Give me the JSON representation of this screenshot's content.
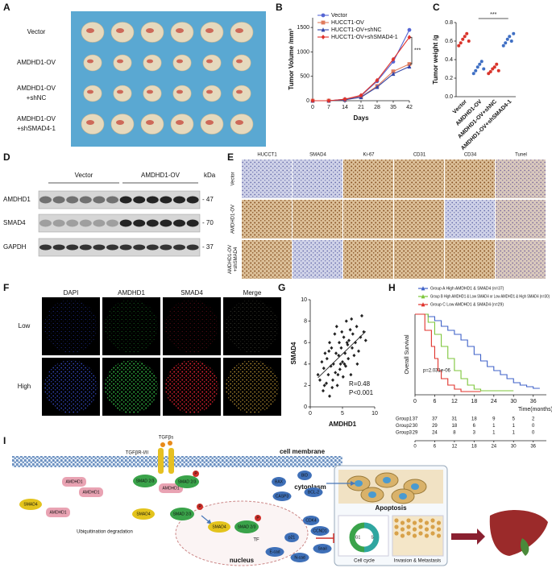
{
  "panel_labels": [
    "A",
    "B",
    "C",
    "D",
    "E",
    "F",
    "G",
    "H",
    "I"
  ],
  "photo": {
    "rows": [
      [
        "Vector"
      ],
      [
        "AMDHD1-OV"
      ],
      [
        "AMDHD1-OV",
        "+shNC"
      ],
      [
        "AMDHD1-OV",
        "+shSMAD4-1"
      ]
    ]
  },
  "western": {
    "groups": [
      "Vector",
      "AMDHD1-OV"
    ],
    "unit": "kDa",
    "rows": [
      {
        "name": "AMDHD1",
        "kda": "- 47"
      },
      {
        "name": "SMAD4",
        "kda": "- 70"
      },
      {
        "name": "GAPDH",
        "kda": "- 37"
      }
    ]
  },
  "ihc": {
    "columns": [
      "HUCCT1",
      "SMAD4",
      "Ki-67",
      "CD31",
      "CD34",
      "Tunel"
    ],
    "rows": [
      [
        "Vector"
      ],
      [
        "AMDHD1-OV"
      ],
      [
        "AMDHD1-OV",
        "+shSMAD4"
      ]
    ]
  },
  "immunofluorescence": {
    "columns": [
      "DAPI",
      "AMDHD1",
      "SMAD4",
      "Merge"
    ],
    "rows": [
      "Low",
      "High"
    ]
  },
  "chart_data": [
    {
      "type": "line",
      "xlabel": "Days",
      "ylabel": "Tumor Volume /mm³",
      "x": [
        0,
        7,
        14,
        21,
        28,
        35,
        42
      ],
      "xlim": [
        0,
        42
      ],
      "xticks": [
        0,
        7,
        14,
        21,
        28,
        35,
        42
      ],
      "ylim": [
        0,
        1700
      ],
      "yticks": [
        0,
        500,
        1000,
        1500
      ],
      "annotation": "***",
      "series": [
        {
          "name": "Vector",
          "color": "#5566d4",
          "marker": "circle",
          "values": [
            0,
            0,
            30,
            100,
            400,
            800,
            1450
          ]
        },
        {
          "name": "HUCCT1-OV",
          "color": "#e07b5c",
          "marker": "square",
          "values": [
            0,
            0,
            20,
            80,
            300,
            600,
            750
          ]
        },
        {
          "name": "HUCCT1-OV+shNC",
          "color": "#3346a8",
          "marker": "triangle",
          "values": [
            0,
            0,
            20,
            70,
            280,
            550,
            700
          ]
        },
        {
          "name": "HUCCT1-OV+shSMAD4-1",
          "color": "#e0322b",
          "marker": "diamond",
          "values": [
            0,
            0,
            30,
            110,
            420,
            850,
            1300
          ]
        }
      ]
    },
    {
      "type": "strip",
      "ylabel": "Tumor weight /g",
      "categories": [
        "Vector",
        "AMDHD1-OV",
        "AMDHD1-OV+shNC",
        "AMDHD1-OV+shSMAD4-1"
      ],
      "colors": [
        "#d9342b",
        "#3f6fc4",
        "#d9342b",
        "#3f6fc4"
      ],
      "values": [
        [
          0.55,
          0.58,
          0.62,
          0.65,
          0.68,
          0.6
        ],
        [
          0.25,
          0.28,
          0.32,
          0.35,
          0.38,
          0.3
        ],
        [
          0.25,
          0.27,
          0.3,
          0.32,
          0.35,
          0.28
        ],
        [
          0.55,
          0.58,
          0.62,
          0.65,
          0.6,
          0.68
        ]
      ],
      "ylim": [
        0,
        0.8
      ],
      "yticks": [
        {
          "value": 0,
          "label": "0.0"
        },
        0.2,
        0.4,
        0.6,
        0.8
      ],
      "annotation": "***"
    },
    {
      "type": "scatter",
      "xlabel": "AMDHD1",
      "ylabel": "SMAD4",
      "color": "#222222",
      "x": [
        1.2,
        1.5,
        1.8,
        2.0,
        2.1,
        2.3,
        2.5,
        2.6,
        2.8,
        3.0,
        3.0,
        3.2,
        3.3,
        3.5,
        3.6,
        3.8,
        3.9,
        4.0,
        4.1,
        4.2,
        4.4,
        4.5,
        4.6,
        4.8,
        4.9,
        5.0,
        5.1,
        5.2,
        5.4,
        5.5,
        5.6,
        5.8,
        5.9,
        6.0,
        6.2,
        6.3,
        6.5,
        6.6,
        6.8,
        7.0,
        7.2,
        7.5,
        7.8,
        8.0,
        8.3,
        8.6,
        2.2,
        3.4,
        4.3,
        5.3,
        6.4,
        7.3,
        2.9,
        4.7,
        5.7
      ],
      "values": [
        3.0,
        2.5,
        4.2,
        1.5,
        3.6,
        5.0,
        2.2,
        4.5,
        3.0,
        6.0,
        1.0,
        3.8,
        5.5,
        2.5,
        4.0,
        6.8,
        3.2,
        5.0,
        7.5,
        2.0,
        4.8,
        6.0,
        3.5,
        5.5,
        7.0,
        4.2,
        2.8,
        6.5,
        5.0,
        3.8,
        8.0,
        5.8,
        4.5,
        6.2,
        7.2,
        3.0,
        5.5,
        6.8,
        4.8,
        6.0,
        7.5,
        5.2,
        6.5,
        8.5,
        7.0,
        6.2,
        2.0,
        1.8,
        3.0,
        4.0,
        8.2,
        4.0,
        5.2,
        4.0,
        6.0
      ],
      "xlim": [
        0,
        10
      ],
      "xticks": [
        0,
        5,
        10
      ],
      "ylim": [
        0,
        10
      ],
      "yticks": [
        0,
        2,
        4,
        6,
        8,
        10
      ],
      "annotations": [
        "R=0.48",
        "P<0.001"
      ]
    },
    {
      "type": "step",
      "xlabel": "Time(months)",
      "ylabel": "Overall Survival",
      "xlim": [
        0,
        40
      ],
      "xticks": [
        0,
        6,
        12,
        18,
        24,
        30,
        36
      ],
      "ylim": [
        0,
        1
      ],
      "annotation": "p=2.031e-06",
      "series": [
        {
          "name": "Group A High AMDHD1 & SMAD4 (n=37)",
          "color": "#3f62c8",
          "x": [
            0,
            4,
            6,
            8,
            10,
            12,
            14,
            16,
            18,
            20,
            22,
            24,
            26,
            28,
            30,
            32,
            34,
            36,
            38
          ],
          "values": [
            1,
            0.97,
            0.92,
            0.85,
            0.8,
            0.75,
            0.68,
            0.6,
            0.5,
            0.42,
            0.35,
            0.3,
            0.25,
            0.2,
            0.15,
            0.12,
            0.1,
            0.08,
            0.08
          ]
        },
        {
          "name": "Group B High AMDHD1 & Low SMAD4 or Low AMDHD1 & High SMAD4 (n=30)",
          "color": "#7cc63a",
          "x": [
            0,
            4,
            6,
            8,
            10,
            12,
            14,
            16,
            18,
            20,
            24,
            30
          ],
          "values": [
            1,
            0.9,
            0.75,
            0.6,
            0.45,
            0.3,
            0.2,
            0.12,
            0.07,
            0.05,
            0.05,
            0.05
          ]
        },
        {
          "name": "Group C Low AMDHD1 & SMAD4 (n=29)",
          "color": "#e0322b",
          "x": [
            0,
            3,
            5,
            6,
            7,
            8,
            10,
            12,
            14,
            16,
            20
          ],
          "values": [
            1,
            0.8,
            0.6,
            0.45,
            0.3,
            0.2,
            0.12,
            0.07,
            0.04,
            0.04,
            0.04
          ]
        }
      ],
      "risk_table": [
        {
          "name": "Group1",
          "values": [
            37,
            37,
            31,
            18,
            9,
            5,
            2
          ]
        },
        {
          "name": "Group2",
          "values": [
            30,
            29,
            18,
            6,
            1,
            1,
            0
          ]
        },
        {
          "name": "Group3",
          "values": [
            29,
            24,
            8,
            3,
            1,
            1,
            0
          ]
        }
      ]
    }
  ],
  "pathway": {
    "labels": [
      "cell membrane",
      "cytoplasm",
      "nucleus",
      "TGFβs",
      "TGFβR-I/II",
      "AMDHD1",
      "AMDHD1",
      "AMDHD1",
      "SMAD 2/3",
      "SMAD 2/3",
      "SMAD4",
      "AMDHD1",
      "Ubiquitination degradation",
      "SMAD4",
      "SMAD 2/3",
      "SMAD4",
      "SMAD 2/3",
      "TF",
      "BAX",
      "BID",
      "CASP3",
      "BCL-2",
      "CDK4",
      "CCND1",
      "p21",
      "E-cad",
      "N-cad",
      "Snail",
      "Apoptosis",
      "Cell cycle",
      "Invasion & Metastasis",
      "G1",
      "S",
      "P",
      "P",
      "P"
    ]
  }
}
